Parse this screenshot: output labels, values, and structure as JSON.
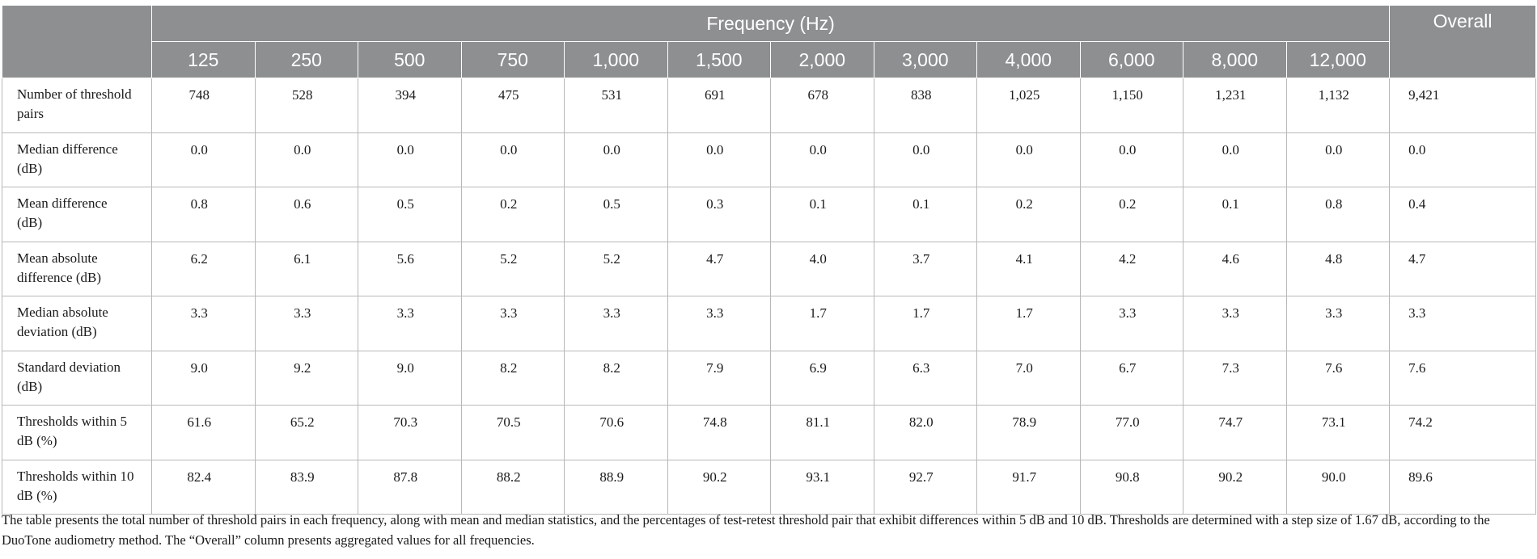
{
  "header": {
    "group_label": "Frequency (Hz)",
    "overall_label": "Overall",
    "frequencies": [
      "125",
      "250",
      "500",
      "750",
      "1,000",
      "1,500",
      "2,000",
      "3,000",
      "4,000",
      "6,000",
      "8,000",
      "12,000"
    ]
  },
  "rows": [
    {
      "label": "Number of threshold pairs",
      "values": [
        "748",
        "528",
        "394",
        "475",
        "531",
        "691",
        "678",
        "838",
        "1,025",
        "1,150",
        "1,231",
        "1,132"
      ],
      "overall": "9,421"
    },
    {
      "label": "Median difference (dB)",
      "values": [
        "0.0",
        "0.0",
        "0.0",
        "0.0",
        "0.0",
        "0.0",
        "0.0",
        "0.0",
        "0.0",
        "0.0",
        "0.0",
        "0.0"
      ],
      "overall": "0.0"
    },
    {
      "label": "Mean difference (dB)",
      "values": [
        "0.8",
        "0.6",
        "0.5",
        "0.2",
        "0.5",
        "0.3",
        "0.1",
        "0.1",
        "0.2",
        "0.2",
        "0.1",
        "0.8"
      ],
      "overall": "0.4"
    },
    {
      "label": "Mean absolute difference (dB)",
      "values": [
        "6.2",
        "6.1",
        "5.6",
        "5.2",
        "5.2",
        "4.7",
        "4.0",
        "3.7",
        "4.1",
        "4.2",
        "4.6",
        "4.8"
      ],
      "overall": "4.7"
    },
    {
      "label": "Median absolute deviation (dB)",
      "values": [
        "3.3",
        "3.3",
        "3.3",
        "3.3",
        "3.3",
        "3.3",
        "1.7",
        "1.7",
        "1.7",
        "3.3",
        "3.3",
        "3.3"
      ],
      "overall": "3.3"
    },
    {
      "label": "Standard deviation (dB)",
      "values": [
        "9.0",
        "9.2",
        "9.0",
        "8.2",
        "8.2",
        "7.9",
        "6.9",
        "6.3",
        "7.0",
        "6.7",
        "7.3",
        "7.6"
      ],
      "overall": "7.6"
    },
    {
      "label": "Thresholds within 5 dB (%)",
      "values": [
        "61.6",
        "65.2",
        "70.3",
        "70.5",
        "70.6",
        "74.8",
        "81.1",
        "82.0",
        "78.9",
        "77.0",
        "74.7",
        "73.1"
      ],
      "overall": "74.2"
    },
    {
      "label": "Thresholds within 10 dB (%)",
      "values": [
        "82.4",
        "83.9",
        "87.8",
        "88.2",
        "88.9",
        "90.2",
        "93.1",
        "92.7",
        "91.7",
        "90.8",
        "90.2",
        "90.0"
      ],
      "overall": "89.6"
    }
  ],
  "footnote": "The table presents the total number of threshold pairs in each frequency, along with mean and median statistics, and the percentages of test-retest threshold pair that exhibit differences within 5 dB and 10 dB. Thresholds are determined with a step size of 1.67 dB, according to the DuoTone audiometry method. The “Overall” column presents aggregated values for all frequencies.",
  "colors": {
    "header_bg": "#8d8f90",
    "header_text": "#ffffff",
    "border": "#b8b8b8"
  }
}
